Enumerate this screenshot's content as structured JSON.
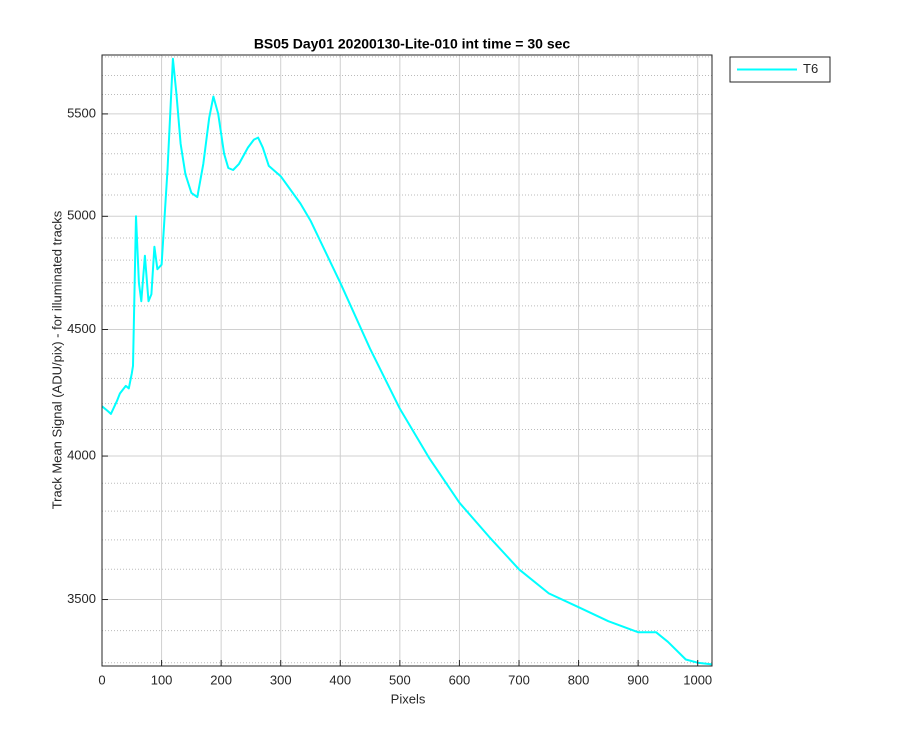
{
  "chart_data": {
    "type": "line",
    "title": "BS05 Day01 20200130-Lite-010 int time = 30 sec",
    "x_label": "Pixels",
    "y_label": "Track Mean Signal (ADU/pix) - for illuminated tracks",
    "log_y": true,
    "grid": true,
    "legend_position": "outside-northeast",
    "xlim": [
      0,
      1024
    ],
    "ylim": [
      3290,
      5810
    ],
    "xticks": [
      0,
      100,
      200,
      300,
      400,
      500,
      600,
      700,
      800,
      900,
      1000
    ],
    "yticks": [
      3500,
      4000,
      4500,
      5000,
      5500
    ],
    "yminorticks": [
      3300,
      3400,
      3600,
      3700,
      3800,
      3900,
      4100,
      4200,
      4300,
      4400,
      4600,
      4700,
      4800,
      4900,
      5100,
      5200,
      5300,
      5400,
      5600,
      5700,
      5800
    ],
    "x": [
      0,
      10,
      15,
      25,
      30,
      40,
      45,
      50,
      52,
      57,
      62,
      66,
      72,
      78,
      83,
      88,
      93,
      100,
      110,
      119,
      125,
      132,
      140,
      150,
      160,
      170,
      180,
      187,
      195,
      205,
      212,
      220,
      230,
      245,
      255,
      262,
      270,
      280,
      300,
      333,
      350,
      400,
      450,
      500,
      550,
      600,
      650,
      700,
      750,
      800,
      850,
      900,
      930,
      950,
      980,
      1000,
      1024
    ],
    "series": [
      {
        "name": "T6",
        "color": "#00ffff",
        "values": [
          4190,
          4170,
          4160,
          4210,
          4240,
          4270,
          4260,
          4320,
          4350,
          5000,
          4700,
          4620,
          4820,
          4620,
          4650,
          4860,
          4760,
          4780,
          5220,
          5790,
          5600,
          5350,
          5200,
          5110,
          5090,
          5250,
          5480,
          5590,
          5500,
          5300,
          5230,
          5220,
          5250,
          5330,
          5370,
          5380,
          5330,
          5240,
          5190,
          5060,
          4980,
          4700,
          4420,
          4180,
          3990,
          3830,
          3710,
          3600,
          3520,
          3475,
          3430,
          3395,
          3395,
          3365,
          3310,
          3300,
          3295
        ]
      }
    ]
  }
}
